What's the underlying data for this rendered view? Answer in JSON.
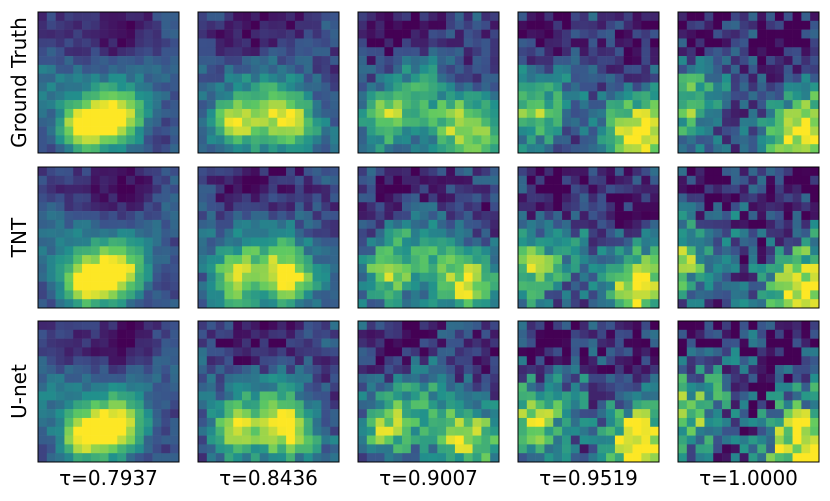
{
  "row_labels": [
    "Ground Truth",
    "TNT",
    "U-net"
  ],
  "column_labels": [
    "τ=0.7937",
    "τ=0.8436",
    "τ=0.9007",
    "τ=0.9519",
    "τ=1.0000"
  ]
}
